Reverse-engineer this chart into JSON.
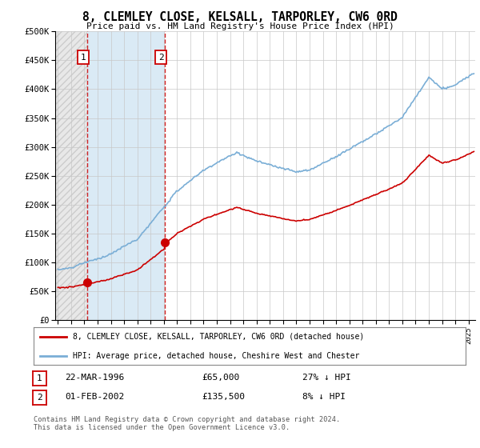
{
  "title": "8, CLEMLEY CLOSE, KELSALL, TARPORLEY, CW6 0RD",
  "subtitle": "Price paid vs. HM Land Registry's House Price Index (HPI)",
  "sale1_date": 1996.22,
  "sale1_price": 65000,
  "sale1_label": "1",
  "sale2_date": 2002.08,
  "sale2_price": 135500,
  "sale2_label": "2",
  "ylim": [
    0,
    500000
  ],
  "yticks": [
    0,
    50000,
    100000,
    150000,
    200000,
    250000,
    300000,
    350000,
    400000,
    450000,
    500000
  ],
  "ytick_labels": [
    "£0",
    "£50K",
    "£100K",
    "£150K",
    "£200K",
    "£250K",
    "£300K",
    "£350K",
    "£400K",
    "£450K",
    "£500K"
  ],
  "xlim_start": 1993.8,
  "xlim_end": 2025.5,
  "hpi_color": "#7aaed6",
  "price_color": "#cc0000",
  "shaded_color": "#daeaf5",
  "vline_color": "#cc0000",
  "legend_label1": "8, CLEMLEY CLOSE, KELSALL, TARPORLEY, CW6 0RD (detached house)",
  "legend_label2": "HPI: Average price, detached house, Cheshire West and Chester",
  "footnote": "Contains HM Land Registry data © Crown copyright and database right 2024.\nThis data is licensed under the Open Government Licence v3.0.",
  "bg_color": "#ffffff"
}
